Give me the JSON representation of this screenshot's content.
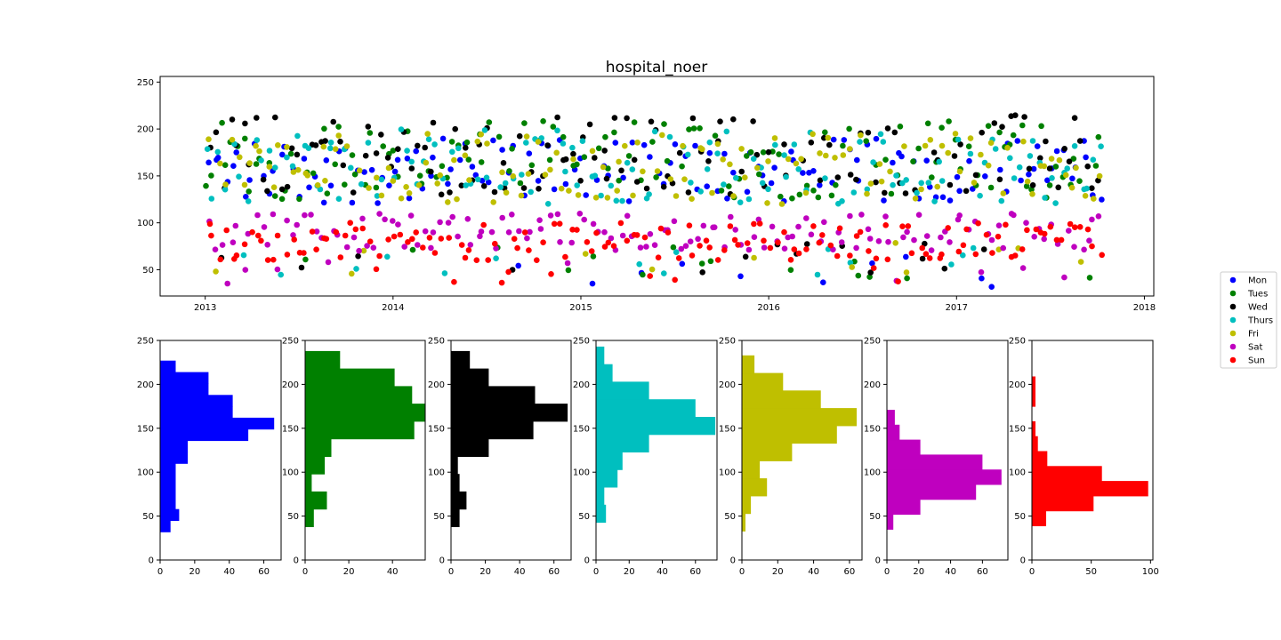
{
  "chart_data": [
    {
      "type": "scatter",
      "title": "hospital_noer",
      "xlabel": "",
      "ylabel": "",
      "x_ticks": [
        "2013",
        "2014",
        "2015",
        "2016",
        "2017",
        "2018"
      ],
      "x_tick_values": [
        2013,
        2014,
        2015,
        2016,
        2017,
        2018
      ],
      "xlim": [
        2012.76,
        2018.05
      ],
      "y_ticks": [
        50,
        100,
        150,
        200,
        250
      ],
      "ylim": [
        22,
        256
      ],
      "x_range_data": [
        2013.0,
        2017.78
      ],
      "grid": false,
      "series": [
        {
          "name": "Mon",
          "color": "#0000ff",
          "band": [
            120,
            190
          ],
          "low": [
            30,
            70
          ]
        },
        {
          "name": "Tues",
          "color": "#008000",
          "band": [
            125,
            210
          ],
          "low": [
            40,
            75
          ]
        },
        {
          "name": "Wed",
          "color": "#000000",
          "band": [
            130,
            215
          ],
          "low": [
            45,
            80
          ]
        },
        {
          "name": "Thurs",
          "color": "#00bfbf",
          "band": [
            120,
            200
          ],
          "low": [
            40,
            75
          ]
        },
        {
          "name": "Fri",
          "color": "#bfbf00",
          "band": [
            120,
            195
          ],
          "low": [
            45,
            80
          ]
        },
        {
          "name": "Sat",
          "color": "#bf00bf",
          "band": [
            70,
            110
          ],
          "low": [
            35,
            60
          ]
        },
        {
          "name": "Sun",
          "color": "#ff0000",
          "band": [
            60,
            100
          ],
          "low": [
            35,
            55
          ]
        }
      ]
    },
    {
      "type": "bar",
      "orientation": "horizontal",
      "name": "Mon",
      "color": "#0000ff",
      "bin_edges": [
        32,
        45,
        58,
        71,
        84,
        97,
        110,
        123,
        136,
        149,
        162,
        175,
        188,
        201,
        214,
        227
      ],
      "counts": [
        6,
        11,
        9,
        9,
        9,
        9,
        16,
        16,
        51,
        66,
        42,
        42,
        28,
        28,
        9
      ],
      "ylim": [
        0,
        250
      ],
      "y_ticks": [
        0,
        50,
        100,
        150,
        200,
        250
      ],
      "xlim": [
        0,
        70
      ],
      "x_ticks": [
        0,
        20,
        40,
        60
      ]
    },
    {
      "type": "bar",
      "orientation": "horizontal",
      "name": "Tues",
      "color": "#008000",
      "bin_edges": [
        38,
        58,
        78,
        98,
        118,
        138,
        158,
        178,
        198,
        218,
        238
      ],
      "counts": [
        4,
        10,
        3,
        9,
        12,
        50,
        55,
        49,
        41,
        16
      ],
      "ylim": [
        0,
        250
      ],
      "y_ticks": [
        0,
        50,
        100,
        150,
        200,
        250
      ],
      "xlim": [
        0,
        55
      ],
      "x_ticks": [
        0,
        20,
        40
      ]
    },
    {
      "type": "bar",
      "orientation": "horizontal",
      "name": "Wed",
      "color": "#000000",
      "bin_edges": [
        38,
        58,
        78,
        98,
        118,
        138,
        158,
        178,
        198,
        218,
        238
      ],
      "counts": [
        5,
        9,
        5,
        4,
        22,
        48,
        68,
        49,
        22,
        11
      ],
      "ylim": [
        0,
        250
      ],
      "y_ticks": [
        0,
        50,
        100,
        150,
        200,
        250
      ],
      "xlim": [
        0,
        70
      ],
      "x_ticks": [
        0,
        20,
        40,
        60
      ]
    },
    {
      "type": "bar",
      "orientation": "horizontal",
      "name": "Thurs",
      "color": "#00bfbf",
      "bin_edges": [
        43,
        63,
        83,
        103,
        123,
        143,
        163,
        183,
        203,
        223,
        243
      ],
      "counts": [
        6,
        5,
        13,
        16,
        32,
        72,
        60,
        32,
        10,
        5
      ],
      "ylim": [
        0,
        250
      ],
      "y_ticks": [
        0,
        50,
        100,
        150,
        200,
        250
      ],
      "xlim": [
        0,
        73
      ],
      "x_ticks": [
        0,
        20,
        40,
        60
      ]
    },
    {
      "type": "bar",
      "orientation": "horizontal",
      "name": "Fri",
      "color": "#bfbf00",
      "bin_edges": [
        33,
        53,
        73,
        93,
        113,
        133,
        153,
        173,
        193,
        213,
        233
      ],
      "counts": [
        2,
        5,
        14,
        10,
        28,
        53,
        64,
        44,
        23,
        7
      ],
      "ylim": [
        0,
        250
      ],
      "y_ticks": [
        0,
        50,
        100,
        150,
        200,
        250
      ],
      "xlim": [
        0,
        67
      ],
      "x_ticks": [
        0,
        20,
        40,
        60
      ]
    },
    {
      "type": "bar",
      "orientation": "horizontal",
      "name": "Sat",
      "color": "#bf00bf",
      "bin_edges": [
        35,
        52,
        69,
        86,
        103,
        120,
        137,
        154,
        171
      ],
      "counts": [
        4,
        21,
        56,
        72,
        60,
        21,
        8,
        5
      ],
      "ylim": [
        0,
        250
      ],
      "y_ticks": [
        0,
        50,
        100,
        150,
        200,
        250
      ],
      "xlim": [
        0,
        76
      ],
      "x_ticks": [
        0,
        20,
        40,
        60
      ]
    },
    {
      "type": "bar",
      "orientation": "horizontal",
      "name": "Sun",
      "color": "#ff0000",
      "bin_edges": [
        39,
        56,
        73,
        90,
        107,
        124,
        141,
        158,
        175,
        192,
        209
      ],
      "counts": [
        12,
        52,
        98,
        59,
        13,
        5,
        3,
        0,
        3,
        3
      ],
      "ylim": [
        0,
        250
      ],
      "y_ticks": [
        0,
        50,
        100,
        150,
        200,
        250
      ],
      "xlim": [
        0,
        102
      ],
      "x_ticks": [
        0,
        50,
        100
      ]
    }
  ],
  "legend": {
    "placement": "right",
    "entries": [
      "Mon",
      "Tues",
      "Wed",
      "Thurs",
      "Fri",
      "Sat",
      "Sun"
    ]
  }
}
